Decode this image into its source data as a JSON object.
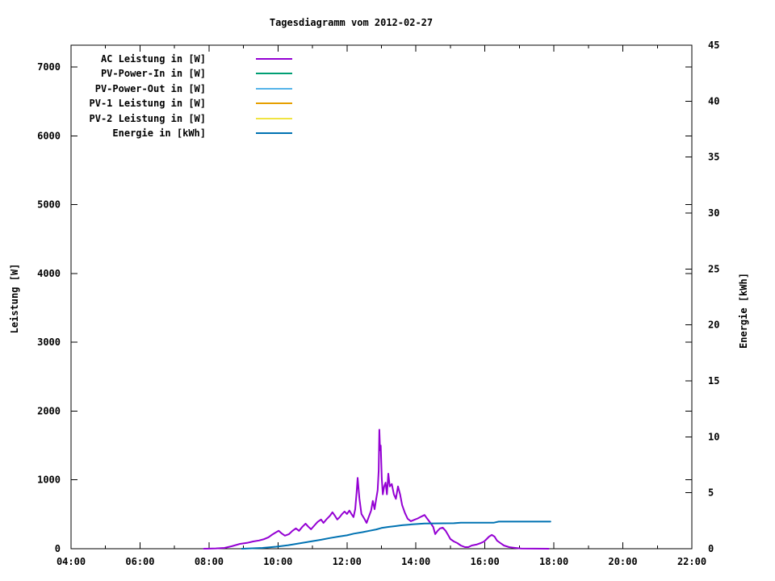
{
  "page": {
    "background": "#ffffff",
    "text_color": "#000000",
    "axis_color": "#000000"
  },
  "chart_data": {
    "type": "line",
    "title": "Tagesdiagramm vom 2012-02-27",
    "xlabel": "",
    "grid": false,
    "legend_position": "top-left-inside",
    "x_axis": {
      "unit": "time-of-day",
      "range_hours": [
        4,
        22
      ],
      "major_tick_step_hours": 2,
      "minor_tick_step_hours": 1,
      "tick_labels": [
        "04:00",
        "06:00",
        "08:00",
        "10:00",
        "12:00",
        "14:00",
        "16:00",
        "18:00",
        "20:00",
        "22:00"
      ]
    },
    "y_axis_left": {
      "label": "Leistung [W]",
      "range": [
        0,
        7320
      ],
      "tick_step": 1000,
      "tick_labels": [
        "0",
        "1000",
        "2000",
        "3000",
        "4000",
        "5000",
        "6000",
        "7000"
      ]
    },
    "y_axis_right": {
      "label": "Energie [kWh]",
      "range": [
        0,
        45
      ],
      "tick_step": 5,
      "tick_labels": [
        "0",
        "5",
        "10",
        "15",
        "20",
        "25",
        "30",
        "35",
        "40",
        "45"
      ]
    },
    "series": [
      {
        "name": "AC Leistung in [W]",
        "color": "#9400d3",
        "axis": "left",
        "points": [
          [
            7.85,
            0
          ],
          [
            8.2,
            5
          ],
          [
            8.45,
            12
          ],
          [
            8.65,
            35
          ],
          [
            8.9,
            70
          ],
          [
            9.1,
            85
          ],
          [
            9.28,
            105
          ],
          [
            9.45,
            120
          ],
          [
            9.6,
            140
          ],
          [
            9.72,
            165
          ],
          [
            9.82,
            200
          ],
          [
            9.93,
            235
          ],
          [
            10.02,
            260
          ],
          [
            10.1,
            225
          ],
          [
            10.2,
            190
          ],
          [
            10.32,
            212
          ],
          [
            10.42,
            260
          ],
          [
            10.52,
            295
          ],
          [
            10.61,
            260
          ],
          [
            10.71,
            320
          ],
          [
            10.8,
            365
          ],
          [
            10.88,
            320
          ],
          [
            10.96,
            282
          ],
          [
            11.06,
            340
          ],
          [
            11.15,
            390
          ],
          [
            11.25,
            425
          ],
          [
            11.32,
            375
          ],
          [
            11.42,
            435
          ],
          [
            11.51,
            480
          ],
          [
            11.58,
            530
          ],
          [
            11.65,
            480
          ],
          [
            11.72,
            425
          ],
          [
            11.79,
            460
          ],
          [
            11.86,
            505
          ],
          [
            11.93,
            540
          ],
          [
            12.0,
            505
          ],
          [
            12.07,
            555
          ],
          [
            12.13,
            505
          ],
          [
            12.19,
            460
          ],
          [
            12.24,
            575
          ],
          [
            12.28,
            810
          ],
          [
            12.31,
            1030
          ],
          [
            12.36,
            730
          ],
          [
            12.42,
            505
          ],
          [
            12.5,
            440
          ],
          [
            12.57,
            375
          ],
          [
            12.63,
            460
          ],
          [
            12.7,
            555
          ],
          [
            12.75,
            695
          ],
          [
            12.8,
            575
          ],
          [
            12.85,
            730
          ],
          [
            12.89,
            850
          ],
          [
            12.92,
            1140
          ],
          [
            12.94,
            1730
          ],
          [
            12.96,
            1430
          ],
          [
            12.98,
            1500
          ],
          [
            13.01,
            1020
          ],
          [
            13.04,
            790
          ],
          [
            13.08,
            905
          ],
          [
            13.12,
            960
          ],
          [
            13.16,
            790
          ],
          [
            13.2,
            1090
          ],
          [
            13.24,
            905
          ],
          [
            13.3,
            940
          ],
          [
            13.36,
            790
          ],
          [
            13.42,
            725
          ],
          [
            13.48,
            905
          ],
          [
            13.54,
            790
          ],
          [
            13.6,
            635
          ],
          [
            13.68,
            520
          ],
          [
            13.76,
            435
          ],
          [
            13.85,
            400
          ],
          [
            13.95,
            420
          ],
          [
            14.05,
            440
          ],
          [
            14.15,
            465
          ],
          [
            14.25,
            490
          ],
          [
            14.33,
            435
          ],
          [
            14.42,
            375
          ],
          [
            14.5,
            318
          ],
          [
            14.56,
            212
          ],
          [
            14.63,
            260
          ],
          [
            14.7,
            295
          ],
          [
            14.78,
            306
          ],
          [
            14.86,
            260
          ],
          [
            14.93,
            200
          ],
          [
            15.0,
            141
          ],
          [
            15.1,
            106
          ],
          [
            15.2,
            82
          ],
          [
            15.3,
            47
          ],
          [
            15.42,
            24
          ],
          [
            15.52,
            24
          ],
          [
            15.62,
            47
          ],
          [
            15.75,
            60
          ],
          [
            15.88,
            82
          ],
          [
            15.98,
            106
          ],
          [
            16.05,
            141
          ],
          [
            16.12,
            176
          ],
          [
            16.2,
            200
          ],
          [
            16.28,
            176
          ],
          [
            16.35,
            118
          ],
          [
            16.45,
            82
          ],
          [
            16.55,
            47
          ],
          [
            16.7,
            24
          ],
          [
            16.88,
            12
          ],
          [
            17.05,
            2
          ],
          [
            17.85,
            0
          ]
        ]
      },
      {
        "name": "PV-Power-In in [W]",
        "color": "#009e73",
        "axis": "left",
        "points": []
      },
      {
        "name": "PV-Power-Out in [W]",
        "color": "#56b4e9",
        "axis": "left",
        "points": []
      },
      {
        "name": "PV-1 Leistung in [W]",
        "color": "#e69f00",
        "axis": "left",
        "points": []
      },
      {
        "name": "PV-2 Leistung in [W]",
        "color": "#f0e442",
        "axis": "left",
        "points": []
      },
      {
        "name": "Energie in [kWh]",
        "color": "#0072b2",
        "axis": "right",
        "points": [
          [
            8.95,
            0
          ],
          [
            9.55,
            0.07
          ],
          [
            9.95,
            0.18
          ],
          [
            10.3,
            0.32
          ],
          [
            10.6,
            0.47
          ],
          [
            10.95,
            0.65
          ],
          [
            11.25,
            0.8
          ],
          [
            11.5,
            0.95
          ],
          [
            11.75,
            1.08
          ],
          [
            12.0,
            1.2
          ],
          [
            12.2,
            1.35
          ],
          [
            12.45,
            1.48
          ],
          [
            12.65,
            1.6
          ],
          [
            12.85,
            1.72
          ],
          [
            13.0,
            1.85
          ],
          [
            13.2,
            1.95
          ],
          [
            13.4,
            2.02
          ],
          [
            13.6,
            2.1
          ],
          [
            13.9,
            2.18
          ],
          [
            14.25,
            2.25
          ],
          [
            15.1,
            2.28
          ],
          [
            15.3,
            2.32
          ],
          [
            16.25,
            2.32
          ],
          [
            16.4,
            2.42
          ],
          [
            17.9,
            2.42
          ]
        ]
      }
    ]
  }
}
